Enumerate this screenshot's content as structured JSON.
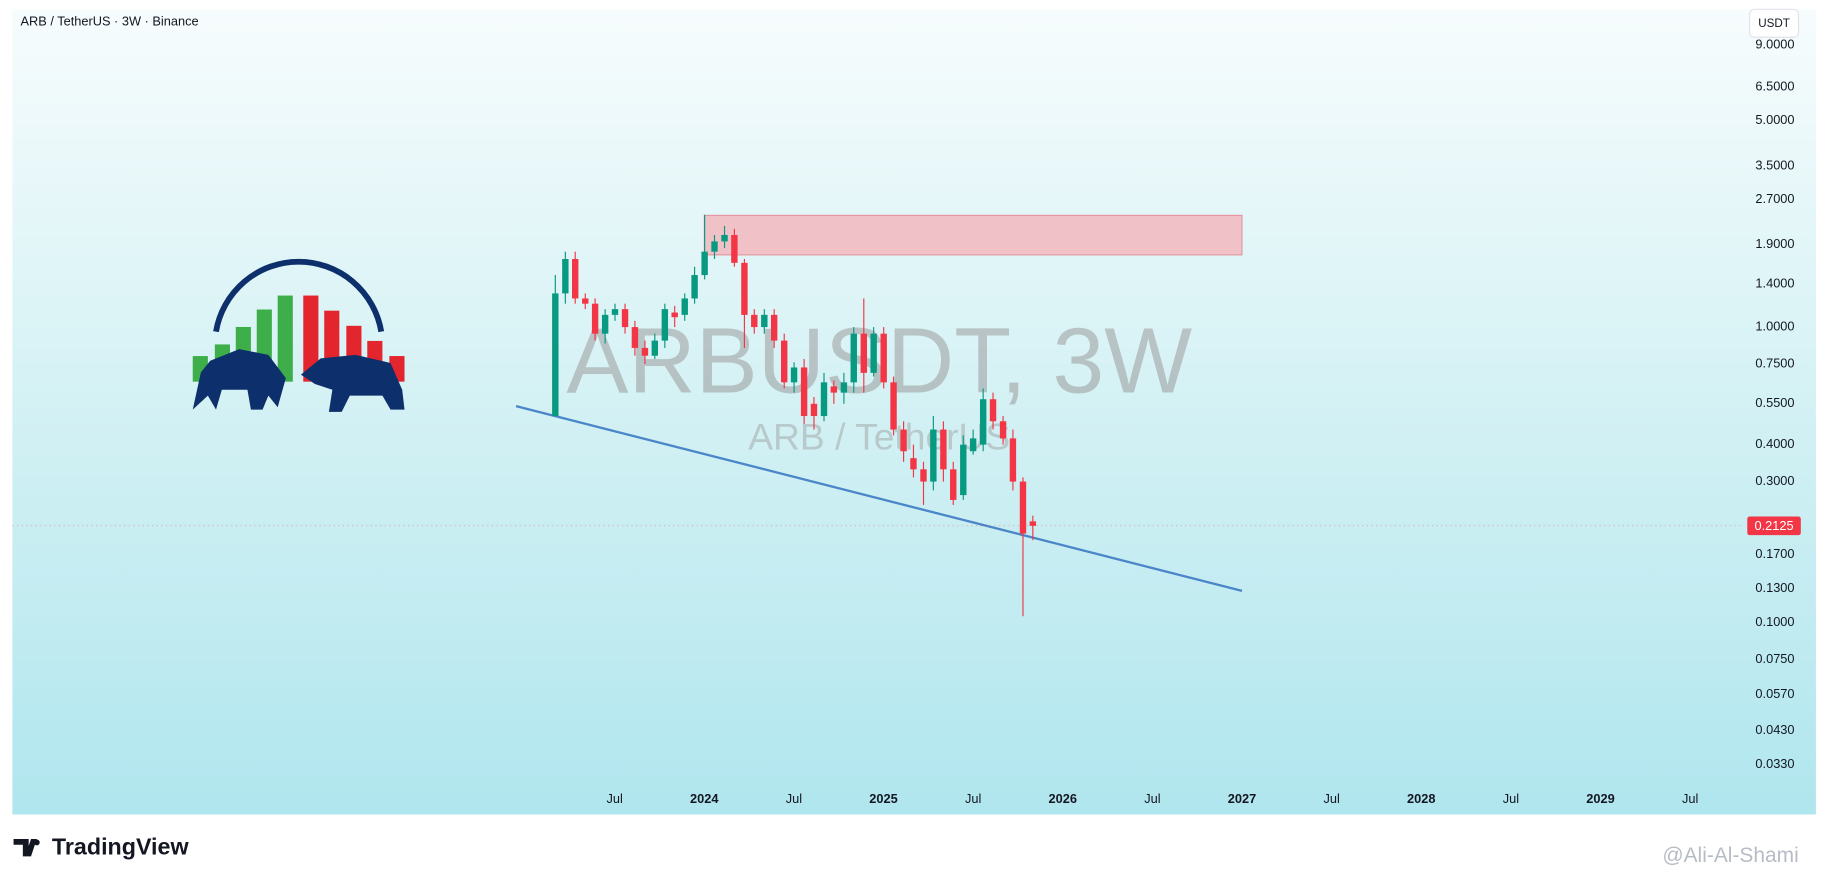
{
  "chart_data": {
    "type": "candlestick",
    "title": "ARB / TetherUS · 3W · Binance",
    "currency": "USDT",
    "watermark": "ARBUSDT, 3W",
    "watermark_subtitle": "ARB / TetherUS",
    "brand": "TradingView",
    "credit": "@Ali-Al-Shami",
    "log_scale": true,
    "grid": false,
    "up_color": "#089981",
    "down_color": "#f23645",
    "x": [
      2023.169,
      2023.225,
      2023.28,
      2023.336,
      2023.391,
      2023.447,
      2023.502,
      2023.558,
      2023.613,
      2023.669,
      2023.724,
      2023.78,
      2023.835,
      2023.891,
      2023.946,
      2024.002,
      2024.057,
      2024.113,
      2024.168,
      2024.224,
      2024.279,
      2024.335,
      2024.39,
      2024.446,
      2024.501,
      2024.557,
      2024.612,
      2024.668,
      2024.723,
      2024.779,
      2024.834,
      2024.89,
      2024.945,
      2025.001,
      2025.056,
      2025.112,
      2025.167,
      2025.223,
      2025.278,
      2025.334,
      2025.389,
      2025.445,
      2025.5,
      2025.556,
      2025.611,
      2025.667,
      2025.722,
      2025.778,
      2025.833
    ],
    "open": [
      0.5,
      1.3,
      1.7,
      1.25,
      1.2,
      0.95,
      1.1,
      1.15,
      1.0,
      0.85,
      0.8,
      0.9,
      1.12,
      1.1,
      1.25,
      1.5,
      1.8,
      1.95,
      2.05,
      1.65,
      1.1,
      1.0,
      1.1,
      0.9,
      0.65,
      0.73,
      0.55,
      0.5,
      0.63,
      0.6,
      0.65,
      0.95,
      0.7,
      0.95,
      0.65,
      0.45,
      0.36,
      0.33,
      0.3,
      0.45,
      0.33,
      0.27,
      0.38,
      0.4,
      0.57,
      0.48,
      0.42,
      0.3,
      0.22
    ],
    "high": [
      1.5,
      1.8,
      1.8,
      1.3,
      1.25,
      1.15,
      1.2,
      1.2,
      1.05,
      0.9,
      0.95,
      1.2,
      1.18,
      1.3,
      1.6,
      2.4,
      2.05,
      2.2,
      2.15,
      1.7,
      1.15,
      1.15,
      1.15,
      0.95,
      0.76,
      0.78,
      0.58,
      0.7,
      0.66,
      0.7,
      1.0,
      1.25,
      1.0,
      1.0,
      0.68,
      0.48,
      0.4,
      0.35,
      0.5,
      0.48,
      0.35,
      0.43,
      0.45,
      0.62,
      0.6,
      0.5,
      0.45,
      0.31,
      0.23
    ],
    "low": [
      0.5,
      1.2,
      1.2,
      1.15,
      0.9,
      0.88,
      1.05,
      0.95,
      0.8,
      0.75,
      0.78,
      0.85,
      1.0,
      1.05,
      1.2,
      1.45,
      1.7,
      1.85,
      1.6,
      0.85,
      0.95,
      0.95,
      0.85,
      0.62,
      0.6,
      0.47,
      0.45,
      0.48,
      0.55,
      0.55,
      0.6,
      0.6,
      0.68,
      0.62,
      0.43,
      0.35,
      0.31,
      0.25,
      0.28,
      0.3,
      0.25,
      0.26,
      0.37,
      0.38,
      0.45,
      0.4,
      0.28,
      0.105,
      0.19
    ],
    "close": [
      1.3,
      1.7,
      1.25,
      1.2,
      0.95,
      1.1,
      1.15,
      1.0,
      0.85,
      0.8,
      0.9,
      1.15,
      1.08,
      1.25,
      1.5,
      1.8,
      1.95,
      2.05,
      1.65,
      1.1,
      1.0,
      1.1,
      0.9,
      0.65,
      0.73,
      0.5,
      0.5,
      0.65,
      0.6,
      0.65,
      0.95,
      0.7,
      0.95,
      0.65,
      0.45,
      0.38,
      0.33,
      0.3,
      0.45,
      0.33,
      0.26,
      0.4,
      0.42,
      0.57,
      0.48,
      0.42,
      0.3,
      0.2,
      0.2125
    ],
    "last_price": {
      "value": 0.2125,
      "label": "0.2125"
    },
    "zone": {
      "x": [
        2024.0,
        2027.0
      ],
      "y": [
        1.755,
        2.39
      ],
      "color": "#f2b8c0"
    },
    "trendline": {
      "x": [
        2022.95,
        2027.0
      ],
      "y": [
        0.54,
        0.128
      ],
      "color": "#4a86c8"
    },
    "xlim": [
      2020.14,
      2029.78
    ],
    "ylim": [
      0.0224,
      11.9
    ],
    "xticks": [
      {
        "value": 2023.5,
        "label": "Jul"
      },
      2024,
      {
        "value": 2024.5,
        "label": "Jul"
      },
      2025,
      {
        "value": 2025.5,
        "label": "Jul"
      },
      2026,
      {
        "value": 2026.5,
        "label": "Jul"
      },
      2027,
      {
        "value": 2027.5,
        "label": "Jul"
      },
      2028,
      {
        "value": 2028.5,
        "label": "Jul"
      },
      2029,
      {
        "value": 2029.5,
        "label": "Jul"
      }
    ],
    "yticks": [
      {
        "value": 9,
        "label": "9.0000"
      },
      {
        "value": 6.5,
        "label": "6.5000"
      },
      {
        "value": 5,
        "label": "5.0000"
      },
      {
        "value": 3.5,
        "label": "3.5000"
      },
      {
        "value": 2.7,
        "label": "2.7000"
      },
      {
        "value": 1.9,
        "label": "1.9000"
      },
      {
        "value": 1.4,
        "label": "1.4000"
      },
      {
        "value": 1,
        "label": "1.0000"
      },
      {
        "value": 0.75,
        "label": "0.7500"
      },
      {
        "value": 0.55,
        "label": "0.5500"
      },
      {
        "value": 0.4,
        "label": "0.4000"
      },
      {
        "value": 0.3,
        "label": "0.3000"
      },
      {
        "value": 0.17,
        "label": "0.1700"
      },
      {
        "value": 0.13,
        "label": "0.1300"
      },
      {
        "value": 0.1,
        "label": "0.1000"
      },
      {
        "value": 0.075,
        "label": "0.0750"
      },
      {
        "value": 0.057,
        "label": "0.0570"
      },
      {
        "value": 0.043,
        "label": "0.0430"
      },
      {
        "value": 0.033,
        "label": "0.0330"
      }
    ]
  }
}
